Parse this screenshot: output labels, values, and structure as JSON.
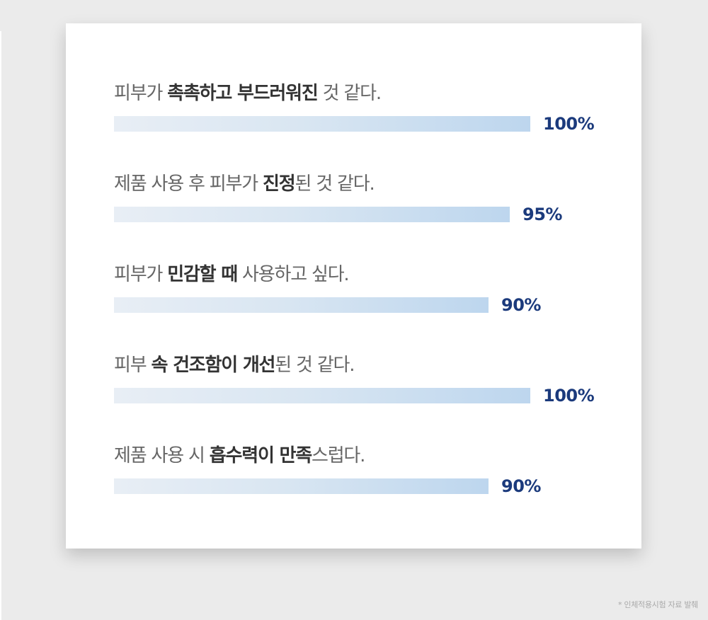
{
  "chart_data": {
    "type": "bar",
    "orientation": "horizontal",
    "xlim": [
      0,
      100
    ],
    "value_suffix": "%",
    "categories": [
      [
        {
          "t": "피부가 ",
          "b": false
        },
        {
          "t": "촉촉하고 부드러워진",
          "b": true
        },
        {
          "t": " 것 같다.",
          "b": false
        }
      ],
      [
        {
          "t": "제품 사용 후 피부가 ",
          "b": false
        },
        {
          "t": "진정",
          "b": true
        },
        {
          "t": "된 것 같다.",
          "b": false
        }
      ],
      [
        {
          "t": "피부가 ",
          "b": false
        },
        {
          "t": "민감할 때",
          "b": true
        },
        {
          "t": " 사용하고 싶다.",
          "b": false
        }
      ],
      [
        {
          "t": "피부 ",
          "b": false
        },
        {
          "t": "속 건조함이 개선",
          "b": true
        },
        {
          "t": "된 것 같다.",
          "b": false
        }
      ],
      [
        {
          "t": "제품 사용 시 ",
          "b": false
        },
        {
          "t": "흡수력이 만족",
          "b": true
        },
        {
          "t": "스럽다.",
          "b": false
        }
      ]
    ],
    "values": [
      100,
      95,
      90,
      100,
      90
    ],
    "value_labels": [
      "100%",
      "95%",
      "90%",
      "100%",
      "90%"
    ]
  },
  "colors": {
    "label_text": "#666666",
    "label_emphasis": "#333333",
    "value_text": "#1b3a7c",
    "bar_start": "#e8eef5",
    "bar_end": "#bdd6ee"
  },
  "footnote": "* 인체적용시험 자료 발췌"
}
